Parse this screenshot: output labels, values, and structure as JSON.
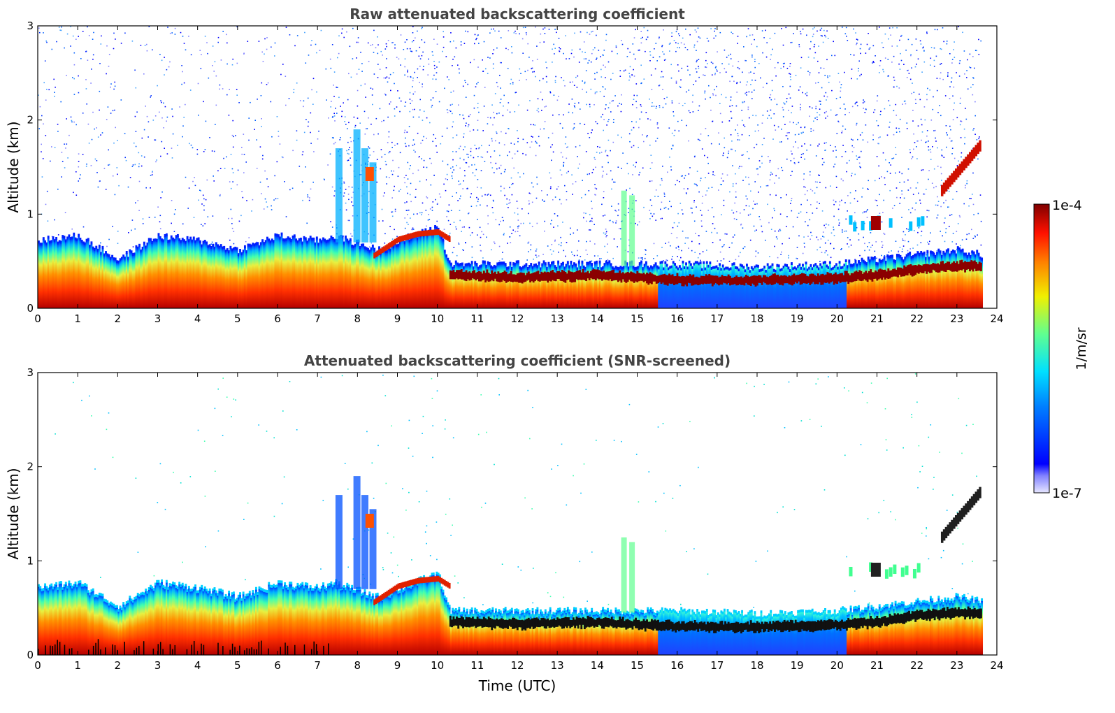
{
  "chart_data": [
    {
      "type": "heatmap",
      "title": "Raw attenuated backscattering coefficient",
      "xlabel": "",
      "ylabel": "Altitude (km)",
      "xlim": [
        0,
        24
      ],
      "ylim": [
        0,
        3
      ],
      "xticks": [
        "0",
        "1",
        "2",
        "3",
        "4",
        "5",
        "6",
        "7",
        "8",
        "9",
        "10",
        "11",
        "12",
        "13",
        "14",
        "15",
        "16",
        "17",
        "18",
        "19",
        "20",
        "21",
        "22",
        "23",
        "24"
      ],
      "yticks": [
        "0",
        "1",
        "2",
        "3"
      ],
      "data_end_time": 23.6,
      "features": [
        {
          "name": "boundary layer top",
          "x": [
            0,
            1,
            2,
            3,
            4,
            5,
            6,
            7,
            7.4,
            8.5,
            10,
            10.3,
            12,
            14,
            16,
            18,
            20,
            21,
            22,
            23,
            23.6
          ],
          "y": [
            0.7,
            0.75,
            0.5,
            0.75,
            0.7,
            0.6,
            0.75,
            0.7,
            0.75,
            0.6,
            0.85,
            0.45,
            0.45,
            0.45,
            0.45,
            0.42,
            0.45,
            0.5,
            0.55,
            0.6,
            0.55
          ]
        },
        {
          "name": "residual / stable layer",
          "x": [
            10.3,
            12,
            14,
            16,
            18,
            20,
            21,
            22,
            23,
            23.6
          ],
          "y": [
            0.35,
            0.33,
            0.35,
            0.3,
            0.3,
            0.32,
            0.35,
            0.42,
            0.45,
            0.45
          ]
        },
        {
          "name": "cloud",
          "x": [
            22.6,
            23.6
          ],
          "y": [
            1.25,
            1.75
          ]
        },
        {
          "name": "cloud",
          "x": [
            20.2,
            22.2
          ],
          "y": [
            0.9,
            0.9
          ]
        }
      ]
    },
    {
      "type": "heatmap",
      "title": "Attenuated backscattering coefficient (SNR-screened)",
      "xlabel": "Time (UTC)",
      "ylabel": "Altitude (km)",
      "xlim": [
        0,
        24
      ],
      "ylim": [
        0,
        3
      ],
      "xticks": [
        "0",
        "1",
        "2",
        "3",
        "4",
        "5",
        "6",
        "7",
        "8",
        "9",
        "10",
        "11",
        "12",
        "13",
        "14",
        "15",
        "16",
        "17",
        "18",
        "19",
        "20",
        "21",
        "22",
        "23",
        "24"
      ],
      "yticks": [
        "0",
        "1",
        "2",
        "3"
      ],
      "data_end_time": 23.6
    }
  ],
  "colorbar": {
    "max_label": "1e-4",
    "min_label": "1e-7",
    "unit": "1/m/sr",
    "colormap": "jet",
    "range": [
      1e-07,
      0.0001
    ]
  }
}
